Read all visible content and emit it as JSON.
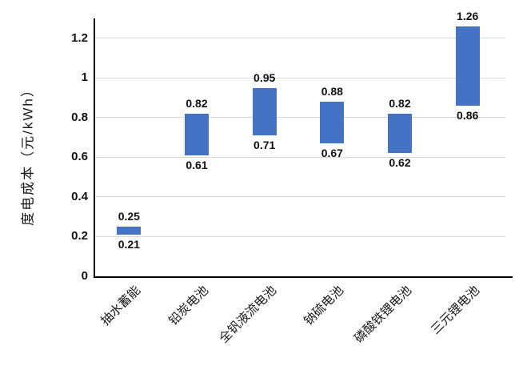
{
  "chart_data": {
    "type": "bar",
    "subtype": "floating-range-column",
    "title": "",
    "xlabel": "",
    "ylabel": "度电成本（元/kWh）",
    "categories": [
      "抽水蓄能",
      "铅炭电池",
      "全钒液流电池",
      "钠硫电池",
      "磷酸铁锂电池",
      "三元锂电池"
    ],
    "ranges": [
      {
        "low": 0.21,
        "high": 0.25
      },
      {
        "low": 0.61,
        "high": 0.82
      },
      {
        "low": 0.71,
        "high": 0.95
      },
      {
        "low": 0.67,
        "high": 0.88
      },
      {
        "low": 0.62,
        "high": 0.82
      },
      {
        "low": 0.86,
        "high": 1.26
      }
    ],
    "data_labels": {
      "high": [
        "0.25",
        "0.82",
        "0.95",
        "0.88",
        "0.82",
        "1.26"
      ],
      "low": [
        "0.21",
        "0.61",
        "0.71",
        "0.67",
        "0.62",
        "0.86"
      ]
    },
    "yticks": [
      0,
      0.2,
      0.4,
      0.6,
      0.8,
      1,
      1.2
    ],
    "ytick_labels": [
      "0",
      "0.2",
      "0.4",
      "0.6",
      "0.8",
      "1",
      "1.2"
    ],
    "ylim": [
      0,
      1.3
    ],
    "grid": true,
    "legend": false,
    "bar_color": "#4472C4",
    "gridline_color": "#D9D9D9",
    "axis_color": "#000000",
    "label_color": "#111111"
  }
}
